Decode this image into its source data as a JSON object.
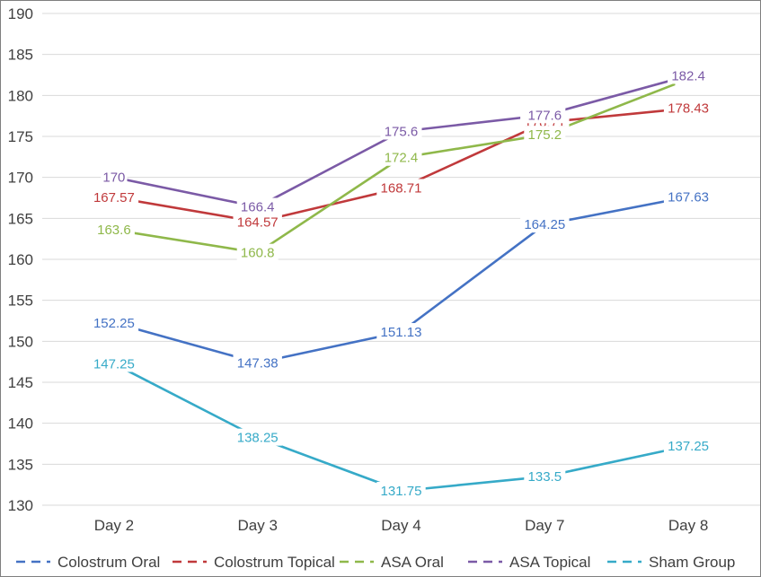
{
  "chart_data": {
    "type": "line",
    "categories": [
      "Day 2",
      "Day 3",
      "Day 4",
      "Day 7",
      "Day 8"
    ],
    "ylim": [
      130,
      190
    ],
    "yticks": [
      130,
      135,
      140,
      145,
      150,
      155,
      160,
      165,
      170,
      175,
      180,
      185,
      190
    ],
    "grid": true,
    "legend_position": "bottom",
    "series": [
      {
        "name": "Colostrum Oral",
        "color": "#4472c4",
        "values": [
          152.25,
          147.38,
          151.13,
          164.25,
          167.63
        ],
        "labels": [
          "152.25",
          "147.38",
          "151.13",
          "164.25",
          "167.63"
        ]
      },
      {
        "name": "Colostrum Topical",
        "color": "#c0393b",
        "values": [
          167.57,
          164.57,
          168.71,
          176.71,
          178.43
        ],
        "labels": [
          "167.57",
          "164.57",
          "168.71",
          "176.71",
          "178.43"
        ]
      },
      {
        "name": "ASA Oral",
        "color": "#8fb84a",
        "values": [
          163.6,
          160.8,
          172.4,
          175.2,
          182
        ],
        "labels": [
          "163.6",
          "160.8",
          "172.4",
          "175.2",
          "182"
        ]
      },
      {
        "name": "ASA Topical",
        "color": "#7b5aa6",
        "values": [
          170,
          166.4,
          175.6,
          177.6,
          182.4
        ],
        "labels": [
          "170",
          "166.4",
          "175.6",
          "177.6",
          "182.4"
        ]
      },
      {
        "name": "Sham Group",
        "color": "#36aac8",
        "values": [
          147.25,
          138.25,
          131.75,
          133.5,
          137.25
        ],
        "labels": [
          "147.25",
          "138.25",
          "131.75",
          "133.5",
          "137.25"
        ]
      }
    ]
  }
}
